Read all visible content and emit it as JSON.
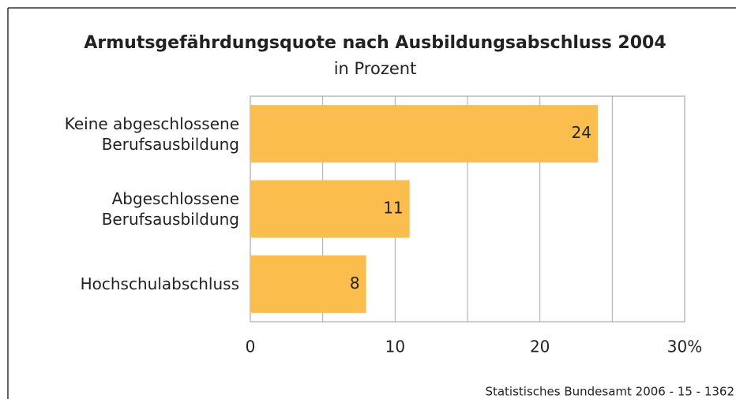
{
  "chart_data": {
    "type": "barh",
    "title": "Armutsgefährdungsquote nach Ausbildungsabschluss 2004",
    "subtitle": "in Prozent",
    "categories": [
      "Keine abgeschlossene Berufsausbildung",
      "Abgeschlossene Berufsausbildung",
      "Hochschulabschluss"
    ],
    "values": [
      24,
      11,
      8
    ],
    "color": "#fbbd4c",
    "xlim": [
      0,
      30
    ],
    "xticks": [
      0,
      10,
      20,
      {
        "value": 30,
        "label": "30%"
      }
    ],
    "minor_xticks": [
      5,
      15,
      25
    ],
    "grid": true,
    "source": "Statistisches Bundesamt 2006 - 15 - 1362"
  }
}
